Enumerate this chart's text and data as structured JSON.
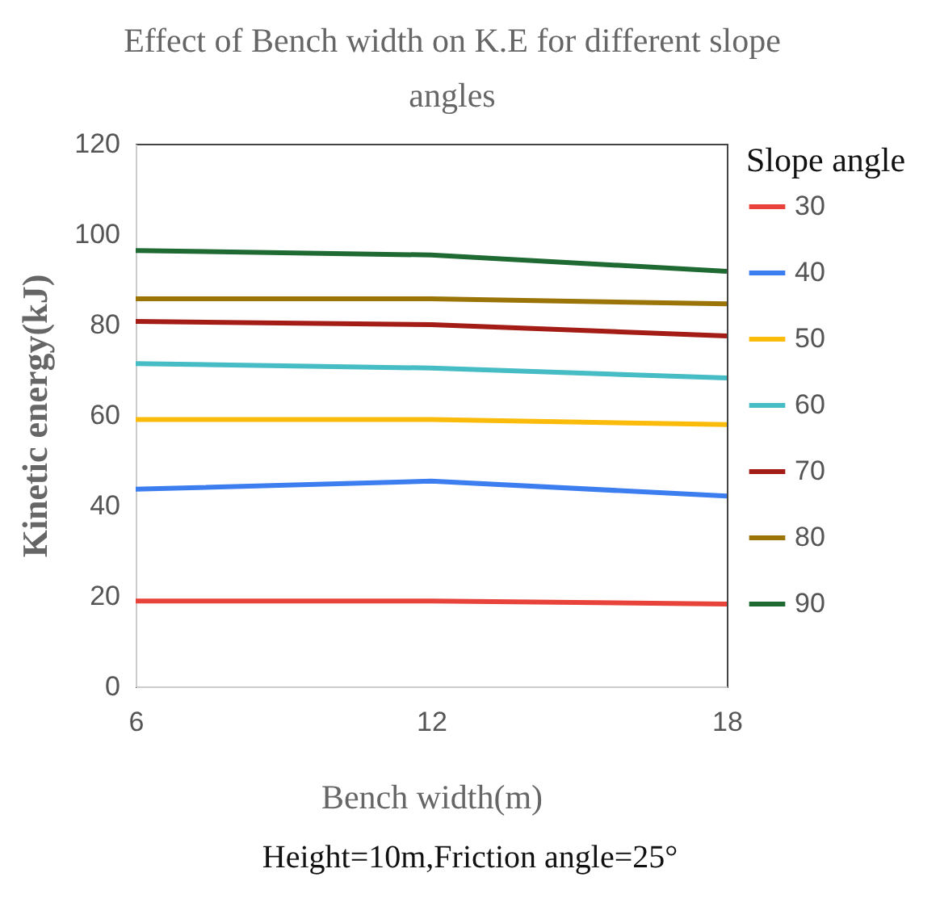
{
  "chart_data": {
    "type": "line",
    "title": "Effect of Bench width on K.E for different slope angles",
    "xlabel": "Bench width(m)",
    "ylabel": "Kinetic energy(kJ)",
    "legend_title": "Slope angle",
    "x": [
      6,
      12,
      18
    ],
    "xlim": [
      6,
      18
    ],
    "xticks": [
      6,
      12,
      18
    ],
    "ylim": [
      0,
      120
    ],
    "yticks": [
      0,
      20,
      40,
      60,
      80,
      100,
      120
    ],
    "series": [
      {
        "name": "30",
        "color": "#e8433a",
        "values": [
          18.9,
          18.9,
          18.2
        ]
      },
      {
        "name": "40",
        "color": "#3c7ef0",
        "values": [
          43.6,
          45.4,
          42.1
        ]
      },
      {
        "name": "50",
        "color": "#fbbb0a",
        "values": [
          59,
          59,
          57.9
        ]
      },
      {
        "name": "60",
        "color": "#46bcc4",
        "values": [
          71.4,
          70.4,
          68.2
        ]
      },
      {
        "name": "70",
        "color": "#a31c16",
        "values": [
          80.7,
          80,
          77.5
        ]
      },
      {
        "name": "80",
        "color": "#9a7406",
        "values": [
          85.7,
          85.7,
          84.6
        ]
      },
      {
        "name": "90",
        "color": "#1e6a32",
        "values": [
          96.4,
          95.4,
          91.8
        ]
      }
    ],
    "grid": false,
    "legend": "right",
    "marker": "none",
    "line_style": "solid",
    "annotations": [
      "Height=10m,Friction angle=25°"
    ]
  }
}
